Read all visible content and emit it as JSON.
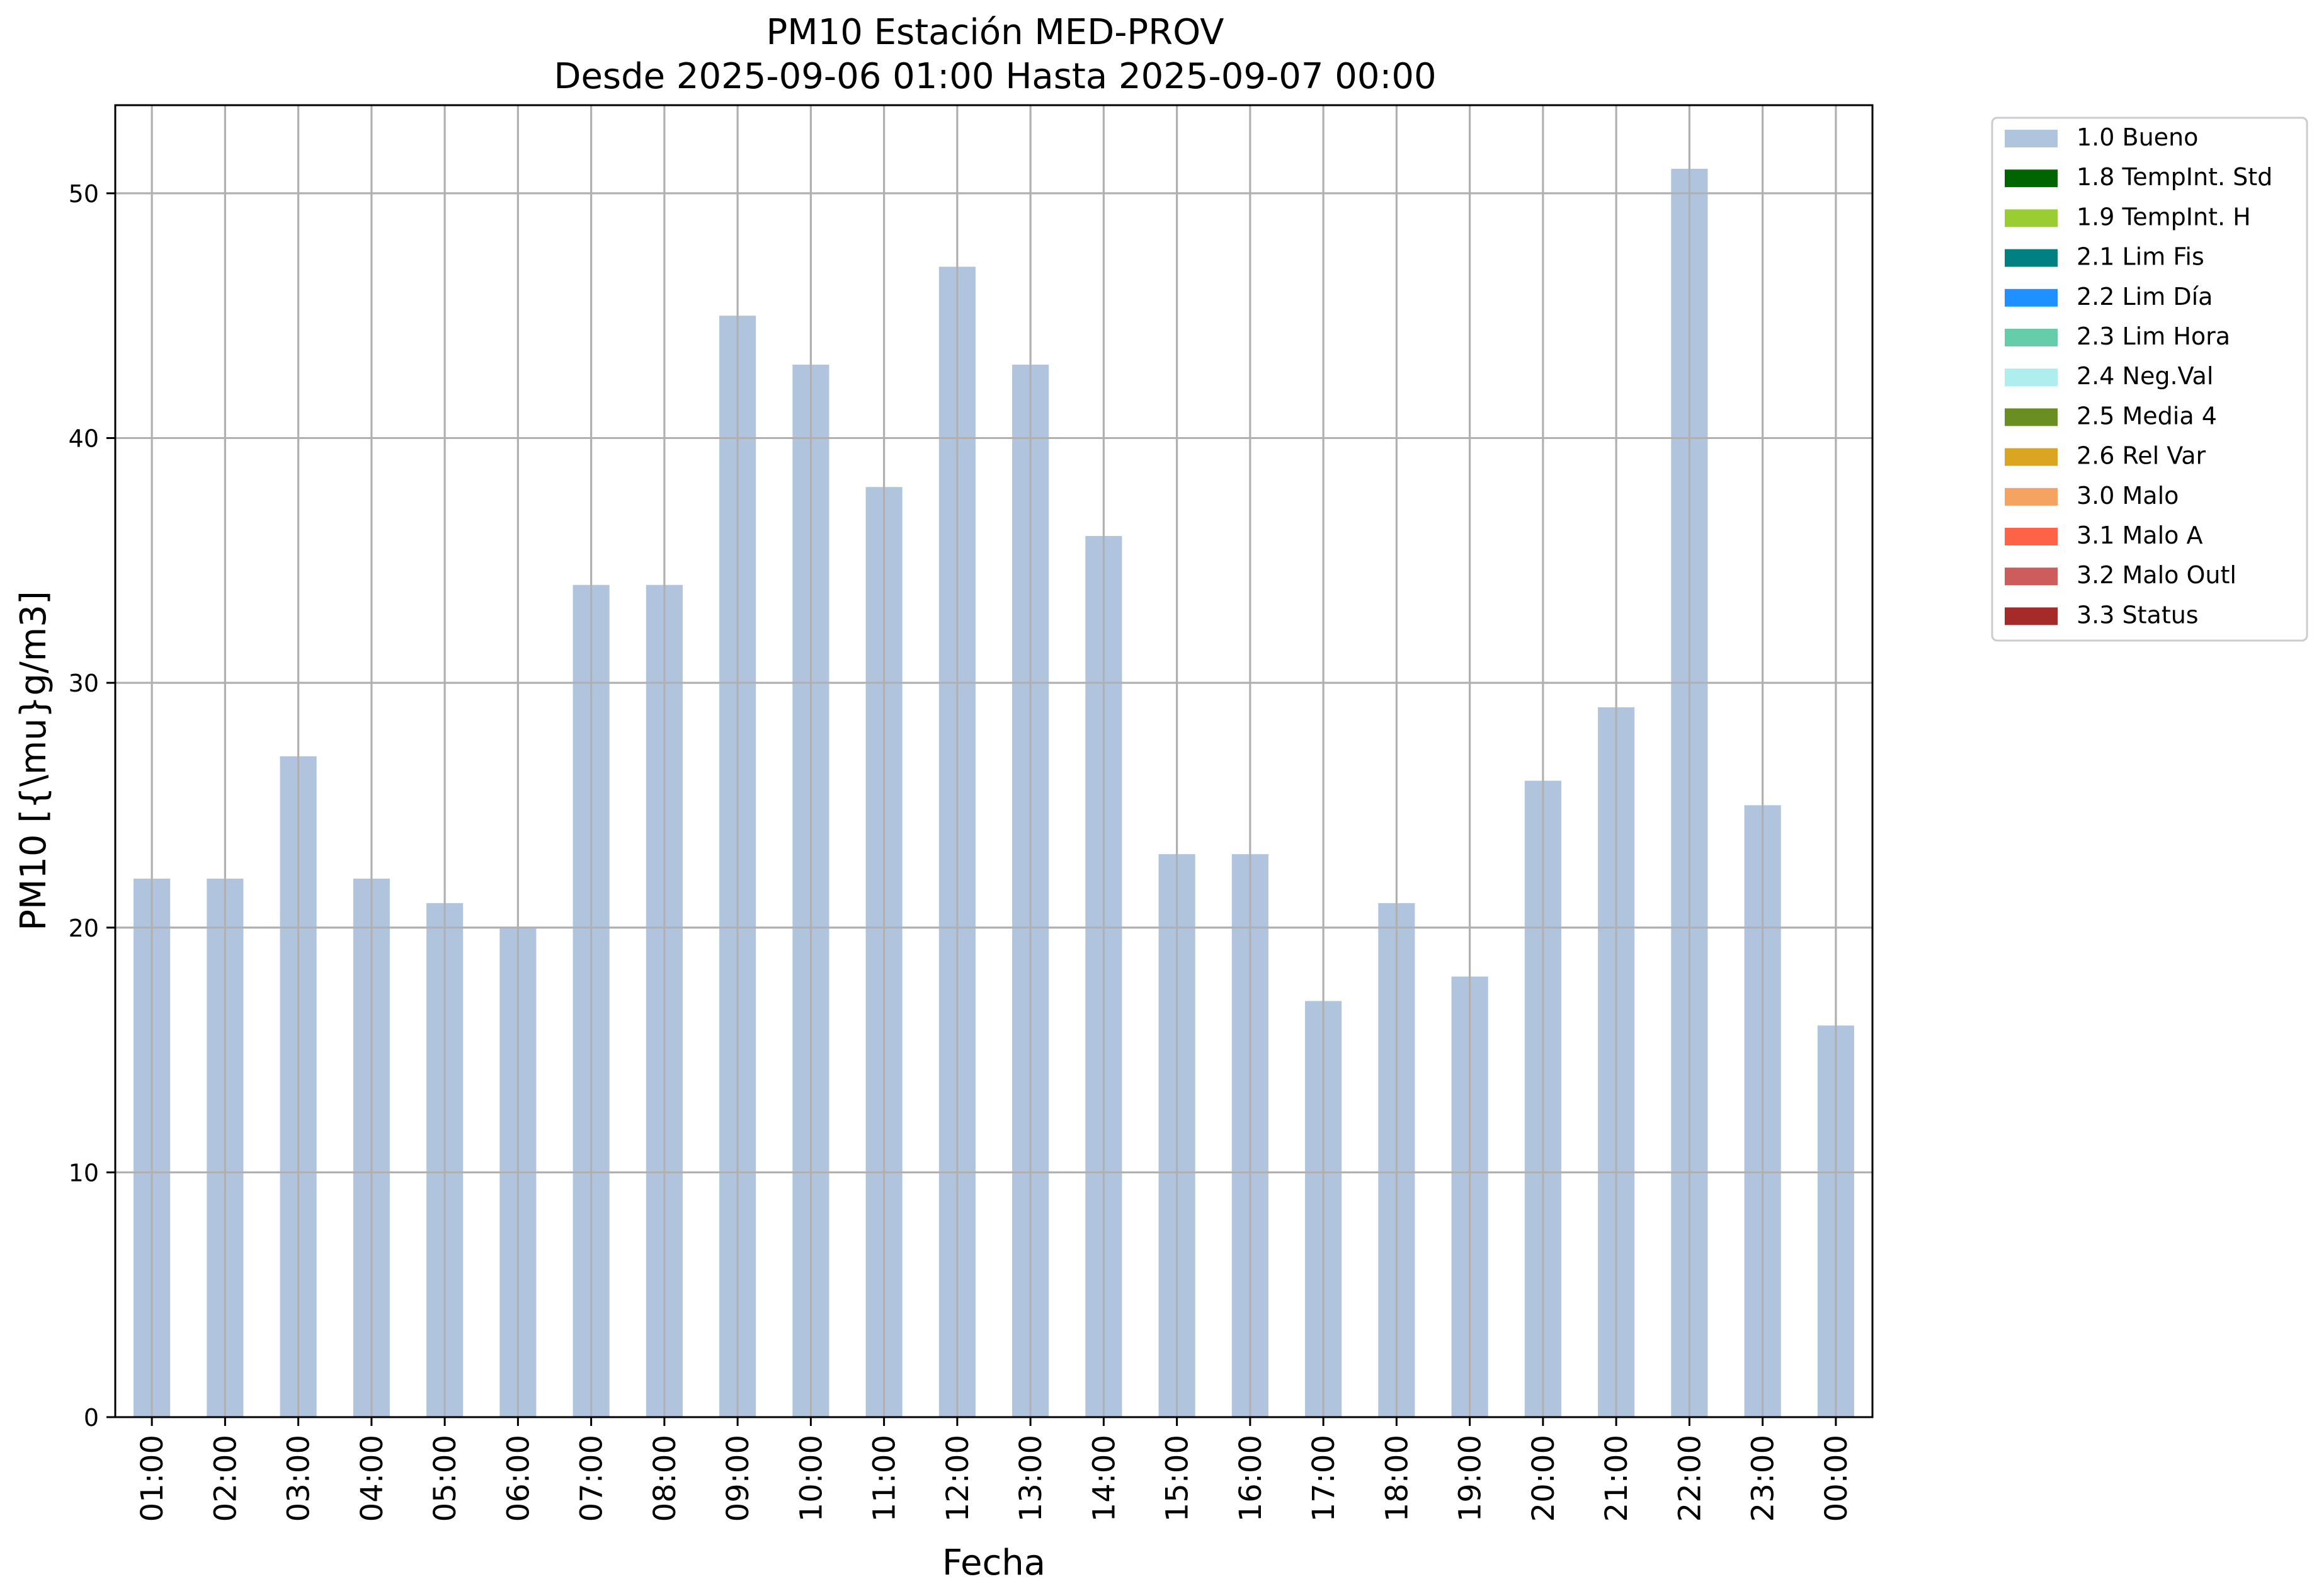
{
  "chart_data": {
    "type": "bar",
    "title": "PM10 Estación MED-PROV",
    "subtitle": "Desde 2025-09-06 01:00 Hasta 2025-09-07 00:00",
    "xlabel": "Fecha",
    "ylabel": "PM10 [{\\mu}g/m3]",
    "ylim": [
      0,
      53.6
    ],
    "yticks": [
      0,
      10,
      20,
      30,
      40,
      50
    ],
    "grid": true,
    "legend_position": "outside-top-right",
    "categories": [
      "01:00",
      "02:00",
      "03:00",
      "04:00",
      "05:00",
      "06:00",
      "07:00",
      "08:00",
      "09:00",
      "10:00",
      "11:00",
      "12:00",
      "13:00",
      "14:00",
      "15:00",
      "16:00",
      "17:00",
      "18:00",
      "19:00",
      "20:00",
      "21:00",
      "22:00",
      "23:00",
      "00:00"
    ],
    "series": [
      {
        "name": "1.0 Bueno",
        "color": "#b0c4de",
        "values": [
          22,
          22,
          27,
          22,
          21,
          20,
          34,
          34,
          45,
          43,
          38,
          47,
          43,
          36,
          23,
          23,
          17,
          21,
          18,
          26,
          29,
          51,
          25,
          16
        ]
      }
    ],
    "legend": [
      {
        "label": "1.0 Bueno",
        "color": "#b0c4de"
      },
      {
        "label": "1.8 TempInt. Std",
        "color": "#006400"
      },
      {
        "label": "1.9 TempInt. H",
        "color": "#9acd32"
      },
      {
        "label": "2.1 Lim Fis",
        "color": "#008080"
      },
      {
        "label": "2.2 Lim Día",
        "color": "#1e90ff"
      },
      {
        "label": "2.3 Lim Hora",
        "color": "#66cdaa"
      },
      {
        "label": "2.4 Neg.Val",
        "color": "#afeeee"
      },
      {
        "label": "2.5 Media 4",
        "color": "#6b8e23"
      },
      {
        "label": "2.6 Rel Var",
        "color": "#daa520"
      },
      {
        "label": "3.0 Malo",
        "color": "#f4a460"
      },
      {
        "label": "3.1 Malo A",
        "color": "#ff6347"
      },
      {
        "label": "3.2 Malo Outl",
        "color": "#cd5c5c"
      },
      {
        "label": "3.3 Status",
        "color": "#a52a2a"
      }
    ]
  }
}
